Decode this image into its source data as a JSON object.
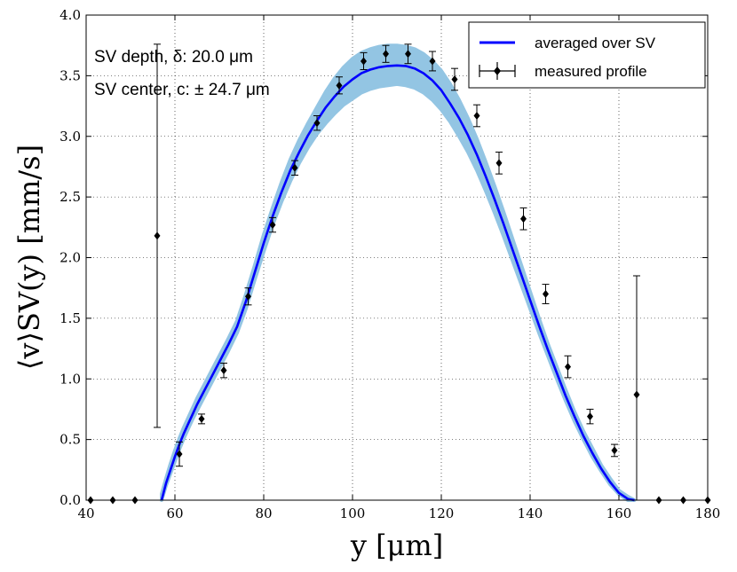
{
  "chart_data": {
    "type": "line",
    "xlabel": "y [μm]",
    "ylabel": "⟨v⟩SV(y) [mm/s]",
    "xlim": [
      40,
      180
    ],
    "ylim": [
      0.0,
      4.0
    ],
    "xticks": [
      40,
      60,
      80,
      100,
      120,
      140,
      160,
      180
    ],
    "xtick_labels": [
      "40",
      "60",
      "80",
      "100",
      "120",
      "140",
      "160",
      "180"
    ],
    "yticks": [
      0.0,
      0.5,
      1.0,
      1.5,
      2.0,
      2.5,
      3.0,
      3.5,
      4.0
    ],
    "ytick_labels": [
      "0.0",
      "0.5",
      "1.0",
      "1.5",
      "2.0",
      "2.5",
      "3.0",
      "3.5",
      "4.0"
    ],
    "grid": true,
    "legend_position": "top-right",
    "annotations": {
      "depth": "SV depth, δ: 20.0 μm",
      "center": "SV center, c: ± 24.7 μm"
    },
    "series": [
      {
        "name": "averaged over SV",
        "style": "line",
        "color": "#0000ff",
        "x": [
          57.0,
          58,
          59,
          60,
          61,
          62,
          63,
          64,
          65,
          66,
          67,
          68,
          69,
          70,
          71,
          72,
          74,
          76,
          78,
          80,
          82,
          84,
          86,
          88,
          90,
          92,
          94,
          96,
          98,
          100,
          102,
          104,
          106,
          108,
          110,
          112,
          114,
          116,
          118,
          120,
          122,
          124,
          126,
          128,
          130,
          132,
          134,
          136,
          138,
          140,
          142,
          144,
          146,
          148,
          150,
          152,
          154,
          156,
          158,
          160,
          162,
          163.5
        ],
        "y": [
          0.0,
          0.14,
          0.25,
          0.36,
          0.46,
          0.55,
          0.63,
          0.71,
          0.79,
          0.86,
          0.93,
          1.0,
          1.07,
          1.14,
          1.21,
          1.28,
          1.43,
          1.64,
          1.88,
          2.12,
          2.34,
          2.54,
          2.72,
          2.87,
          3.01,
          3.13,
          3.24,
          3.33,
          3.41,
          3.47,
          3.52,
          3.55,
          3.57,
          3.58,
          3.585,
          3.58,
          3.56,
          3.52,
          3.46,
          3.38,
          3.27,
          3.15,
          3.01,
          2.85,
          2.67,
          2.48,
          2.28,
          2.07,
          1.86,
          1.65,
          1.44,
          1.24,
          1.05,
          0.86,
          0.69,
          0.53,
          0.39,
          0.26,
          0.15,
          0.06,
          0.01,
          0.0
        ],
        "band_color": "#93c5e3",
        "band_lower": [
          0.0,
          0.12,
          0.22,
          0.32,
          0.42,
          0.51,
          0.59,
          0.67,
          0.74,
          0.81,
          0.88,
          0.95,
          1.02,
          1.09,
          1.16,
          1.23,
          1.38,
          1.58,
          1.82,
          2.05,
          2.27,
          2.46,
          2.63,
          2.78,
          2.91,
          3.02,
          3.11,
          3.19,
          3.26,
          3.31,
          3.36,
          3.39,
          3.41,
          3.42,
          3.43,
          3.42,
          3.4,
          3.36,
          3.3,
          3.22,
          3.12,
          3.0,
          2.87,
          2.72,
          2.55,
          2.37,
          2.18,
          1.98,
          1.78,
          1.58,
          1.38,
          1.19,
          1.0,
          0.82,
          0.65,
          0.5,
          0.36,
          0.24,
          0.13,
          0.05,
          0.0,
          0.0
        ],
        "band_upper": [
          0.05,
          0.18,
          0.3,
          0.41,
          0.51,
          0.6,
          0.68,
          0.76,
          0.84,
          0.91,
          0.98,
          1.05,
          1.12,
          1.19,
          1.26,
          1.33,
          1.48,
          1.7,
          1.94,
          2.19,
          2.41,
          2.62,
          2.81,
          2.97,
          3.11,
          3.24,
          3.37,
          3.48,
          3.57,
          3.64,
          3.69,
          3.72,
          3.74,
          3.75,
          3.75,
          3.74,
          3.72,
          3.68,
          3.62,
          3.54,
          3.43,
          3.3,
          3.15,
          2.98,
          2.79,
          2.59,
          2.38,
          2.16,
          1.94,
          1.72,
          1.5,
          1.29,
          1.1,
          0.91,
          0.73,
          0.57,
          0.43,
          0.29,
          0.18,
          0.08,
          0.03,
          0.0
        ]
      },
      {
        "name": "measured profile",
        "style": "points-with-errorbars",
        "color": "#000000",
        "x": [
          41,
          46,
          51,
          56,
          61,
          66,
          71,
          76.5,
          82,
          87,
          92,
          97,
          102.5,
          107.5,
          112.5,
          118,
          123,
          128,
          133,
          138.5,
          143.5,
          148.5,
          153.5,
          159,
          164,
          169,
          174.5,
          180
        ],
        "y": [
          0.0,
          0.0,
          0.0,
          2.18,
          0.38,
          0.67,
          1.07,
          1.68,
          2.27,
          2.74,
          3.11,
          3.42,
          3.62,
          3.68,
          3.68,
          3.62,
          3.47,
          3.17,
          2.78,
          2.32,
          1.7,
          1.1,
          0.69,
          0.41,
          0.87,
          0.0,
          0.0,
          0.0
        ],
        "yerr": [
          0.0,
          0.0,
          0.0,
          1.58,
          0.1,
          0.04,
          0.06,
          0.07,
          0.06,
          0.06,
          0.06,
          0.07,
          0.07,
          0.07,
          0.08,
          0.08,
          0.09,
          0.09,
          0.09,
          0.09,
          0.08,
          0.09,
          0.06,
          0.05,
          0.98,
          0.0,
          0.0,
          0.0
        ]
      }
    ]
  }
}
